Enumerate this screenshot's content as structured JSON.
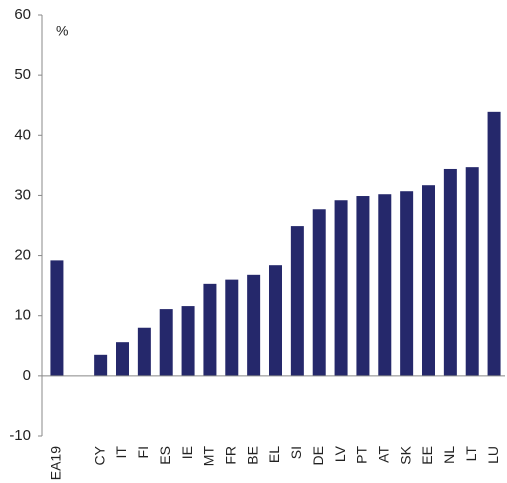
{
  "chart_data": {
    "type": "bar",
    "unit_label": "%",
    "categories": [
      "EA19",
      null,
      "CY",
      "IT",
      "FI",
      "ES",
      "IE",
      "MT",
      "FR",
      "BE",
      "EL",
      "SI",
      "DE",
      "LV",
      "PT",
      "AT",
      "SK",
      "EE",
      "NL",
      "LT",
      "LU"
    ],
    "values": [
      19.2,
      null,
      3.5,
      5.6,
      8,
      11.1,
      11.6,
      15.3,
      16,
      16.8,
      18.4,
      24.9,
      27.7,
      29.2,
      29.9,
      30.2,
      30.7,
      31.7,
      34.4,
      34.7,
      43.9
    ],
    "color": "#25286b",
    "ylim": [
      -10,
      60
    ],
    "yticks": [
      -10,
      0,
      10,
      20,
      30,
      40,
      50,
      60
    ],
    "grid": false
  }
}
